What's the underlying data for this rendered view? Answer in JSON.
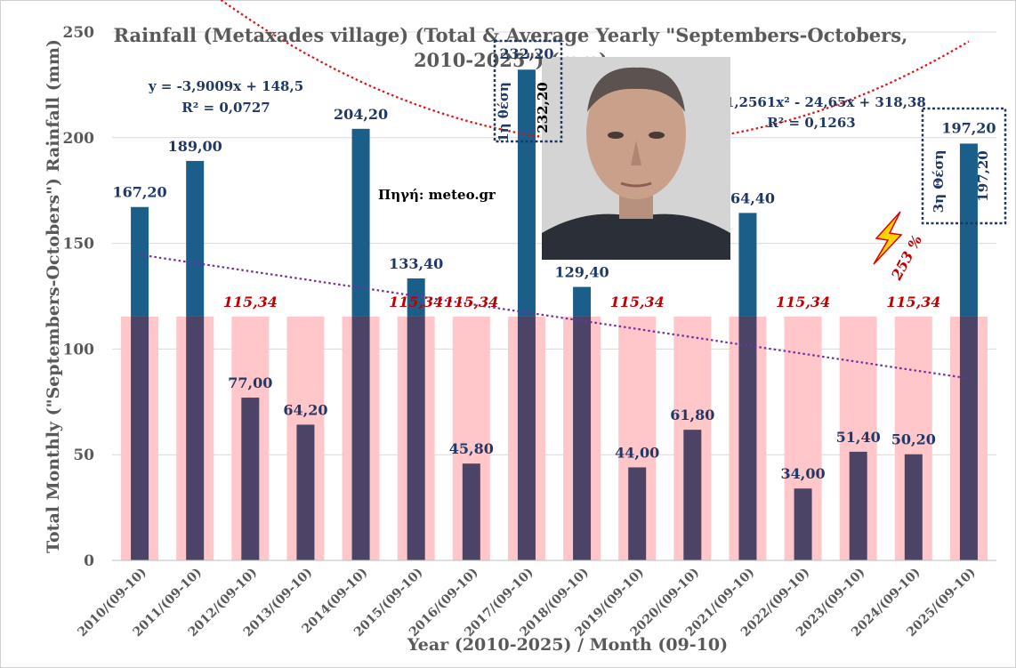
{
  "chart_data": {
    "type": "bar",
    "title": "Rainfall (Metaxades village) (Total & Average Yearly \"Septembers-Octobers, 2010-2025\") (mm)",
    "title_lines": [
      "Rainfall (Metaxades village) (Total & Average Yearly \"Septembers-Octobers,",
      "2010-2025\") (mm)"
    ],
    "xlabel": "Year (2010-2025) / Month (09-10)",
    "ylabel": "Total Monthly (\"Septembers-Octobers\") Rainfall (mm)",
    "ylim": [
      0,
      250
    ],
    "yticks": [
      0,
      50,
      100,
      150,
      200,
      250
    ],
    "grid": true,
    "categories": [
      "2010/(09-10)",
      "2011/(09-10)",
      "2012/(09-10)",
      "2013/(09-10)",
      "2014(09-10)",
      "2015/(09-10)",
      "2016/(09-10)",
      "2017/(09-10)",
      "2018/(09-10)",
      "2019/(09-10)",
      "2020/(09-10)",
      "2021/(09-10)",
      "2022/(09-10)",
      "2023/(09-10)",
      "2024/(09-10)",
      "2025/(09-10)"
    ],
    "series": [
      {
        "values": [
          167.2,
          189.0,
          77.0,
          64.2,
          204.2,
          133.4,
          45.8,
          232.2,
          129.4,
          44.0,
          61.8,
          164.4,
          34.0,
          51.4,
          50.2,
          197.2
        ],
        "labels": [
          "167,20",
          "189,00",
          "77,00",
          "64,20",
          "204,20",
          "133,40",
          "45,80",
          "232,20",
          "129,40",
          "44,00",
          "61,80",
          "164,40",
          "34,00",
          "51,40",
          "50,20",
          "197,20"
        ],
        "color_above": "#1b5e8a",
        "color_below": "#4b4466"
      },
      {
        "values": [
          115.34,
          115.34,
          115.34,
          115.34,
          115.34,
          115.34,
          115.34,
          115.34,
          115.34,
          115.34,
          115.34,
          115.34,
          115.34,
          115.34,
          115.34,
          115.34
        ],
        "label": "115,34",
        "label_indices": [
          2,
          5,
          6,
          9,
          12,
          14
        ],
        "color": "#ffc7ca"
      }
    ],
    "trendlines": [
      {
        "type": "linear",
        "equation": "y = -3,9009x + 148,5",
        "r2": "R² = 0,0727",
        "slope": -3.9009,
        "intercept": 148.5,
        "color": "#7030a0"
      },
      {
        "type": "poly2",
        "equation": "y = 1,2561x² - 24,65x + 318,38",
        "r2": "R² = 0,1263",
        "a": 1.2561,
        "b": -24.65,
        "c": 318.38,
        "color": "#e01010"
      }
    ],
    "annotations": {
      "source": "Πηγή: meteo.gr",
      "rank1_label": "1η θέση",
      "rank1_value": "232,20",
      "rank3_label": "3η Θέση",
      "rank3_value": "197,20",
      "percent": "253 %"
    }
  },
  "colors": {
    "photo_bg": "#d4d4d4",
    "lightning": "#ffd400",
    "lightning_edge": "#e00000"
  },
  "icons": {
    "lightning": "lightning-bolt-icon",
    "photo": "portrait-photo"
  }
}
